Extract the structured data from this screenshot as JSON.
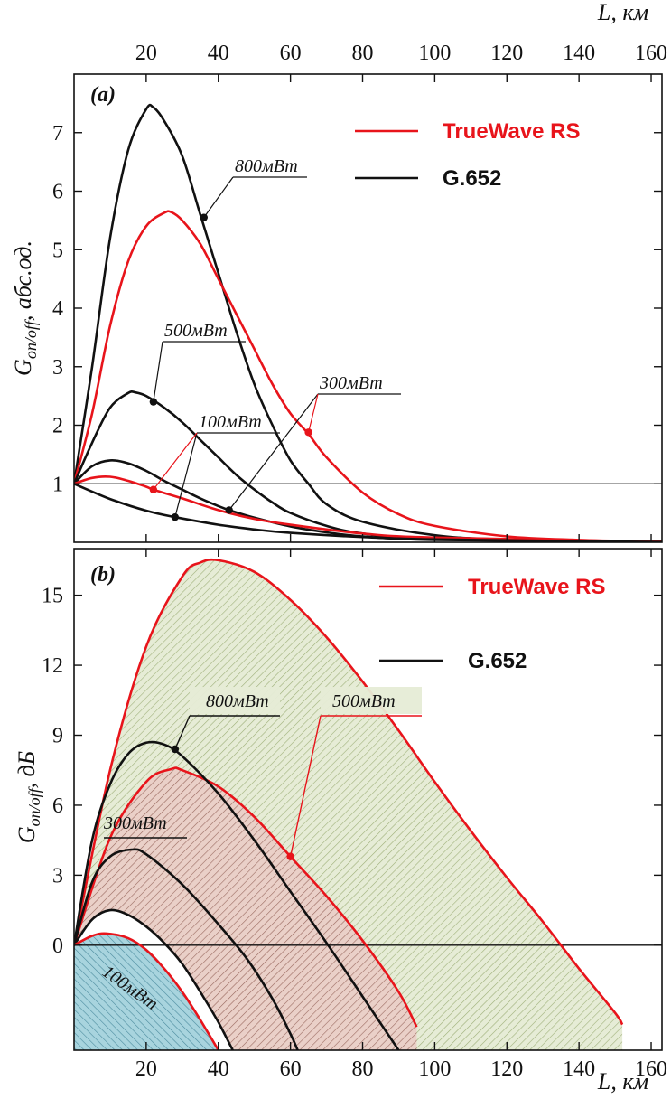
{
  "colors": {
    "truewave": "#e8141b",
    "g652": "#111111",
    "axis": "#111111",
    "fill_green": "#e6ecd6",
    "fill_green_hatch": "#9fb07a",
    "fill_red": "#ead0c8",
    "fill_red_hatch": "#9a6a60",
    "fill_blue": "#a8d4de",
    "fill_blue_hatch": "#4e8da0"
  },
  "top_axis": {
    "label": "L, км",
    "ticks": [
      "20",
      "40",
      "60",
      "80",
      "100",
      "120",
      "140",
      "160"
    ]
  },
  "chart_data": [
    {
      "type": "line",
      "panel": "(a)",
      "ylabel_main": "G",
      "ylabel_sub": "on/off",
      "ylabel_unit": ", абс.од.",
      "xlim": [
        0,
        163
      ],
      "ylim": [
        0,
        8
      ],
      "yticks": [
        "1",
        "2",
        "3",
        "4",
        "5",
        "6",
        "7"
      ],
      "reference_line_y": 1,
      "legend": {
        "position": "top-right",
        "items": [
          {
            "label": "TrueWave RS",
            "color_key": "truewave"
          },
          {
            "label": "G.652",
            "color_key": "g652"
          }
        ]
      },
      "series": [
        {
          "fiber": "G.652",
          "color_key": "g652",
          "power": "800мВт",
          "points": [
            [
              0,
              1.0
            ],
            [
              5,
              3.0
            ],
            [
              10,
              5.2
            ],
            [
              15,
              6.7
            ],
            [
              20,
              7.4
            ],
            [
              22,
              7.43
            ],
            [
              25,
              7.2
            ],
            [
              30,
              6.6
            ],
            [
              35,
              5.6
            ],
            [
              40,
              4.6
            ],
            [
              45,
              3.6
            ],
            [
              50,
              2.7
            ],
            [
              55,
              2.0
            ],
            [
              60,
              1.4
            ],
            [
              65,
              1.0
            ],
            [
              70,
              0.65
            ],
            [
              80,
              0.35
            ],
            [
              100,
              0.12
            ],
            [
              120,
              0.05
            ],
            [
              163,
              0.01
            ]
          ]
        },
        {
          "fiber": "TrueWave RS",
          "color_key": "truewave",
          "power": "800мВт",
          "points": [
            [
              0,
              1.0
            ],
            [
              5,
              2.2
            ],
            [
              10,
              3.7
            ],
            [
              15,
              4.8
            ],
            [
              20,
              5.4
            ],
            [
              25,
              5.63
            ],
            [
              27,
              5.64
            ],
            [
              30,
              5.5
            ],
            [
              35,
              5.1
            ],
            [
              40,
              4.5
            ],
            [
              45,
              3.9
            ],
            [
              50,
              3.3
            ],
            [
              55,
              2.7
            ],
            [
              60,
              2.2
            ],
            [
              65,
              1.85
            ],
            [
              70,
              1.45
            ],
            [
              80,
              0.85
            ],
            [
              90,
              0.48
            ],
            [
              100,
              0.28
            ],
            [
              120,
              0.1
            ],
            [
              140,
              0.04
            ],
            [
              163,
              0.01
            ]
          ]
        },
        {
          "fiber": "G.652",
          "color_key": "g652",
          "power": "500мВт",
          "points": [
            [
              0,
              1.0
            ],
            [
              5,
              1.7
            ],
            [
              10,
              2.3
            ],
            [
              15,
              2.55
            ],
            [
              17,
              2.56
            ],
            [
              20,
              2.5
            ],
            [
              25,
              2.3
            ],
            [
              30,
              2.05
            ],
            [
              35,
              1.75
            ],
            [
              40,
              1.45
            ],
            [
              45,
              1.15
            ],
            [
              50,
              0.9
            ],
            [
              55,
              0.68
            ],
            [
              60,
              0.5
            ],
            [
              70,
              0.28
            ],
            [
              80,
              0.15
            ],
            [
              100,
              0.05
            ],
            [
              163,
              0.005
            ]
          ]
        },
        {
          "fiber": "G.652",
          "color_key": "g652",
          "power": "300мВт",
          "points": [
            [
              0,
              1.0
            ],
            [
              5,
              1.3
            ],
            [
              10,
              1.4
            ],
            [
              15,
              1.35
            ],
            [
              20,
              1.22
            ],
            [
              25,
              1.05
            ],
            [
              30,
              0.9
            ],
            [
              35,
              0.75
            ],
            [
              40,
              0.62
            ],
            [
              43,
              0.55
            ],
            [
              50,
              0.42
            ],
            [
              60,
              0.27
            ],
            [
              70,
              0.17
            ],
            [
              80,
              0.1
            ],
            [
              100,
              0.04
            ],
            [
              163,
              0.004
            ]
          ]
        },
        {
          "fiber": "TrueWave RS",
          "color_key": "truewave",
          "power": "100мВт",
          "points": [
            [
              0,
              1.0
            ],
            [
              5,
              1.1
            ],
            [
              10,
              1.12
            ],
            [
              15,
              1.05
            ],
            [
              20,
              0.95
            ],
            [
              22,
              0.9
            ],
            [
              30,
              0.75
            ],
            [
              40,
              0.55
            ],
            [
              50,
              0.4
            ],
            [
              60,
              0.3
            ],
            [
              80,
              0.15
            ],
            [
              100,
              0.08
            ],
            [
              163,
              0.01
            ]
          ]
        },
        {
          "fiber": "G.652",
          "color_key": "g652",
          "power": "100мВт",
          "points": [
            [
              0,
              1.0
            ],
            [
              10,
              0.74
            ],
            [
              20,
              0.54
            ],
            [
              28,
              0.43
            ],
            [
              40,
              0.3
            ],
            [
              50,
              0.22
            ],
            [
              60,
              0.16
            ],
            [
              80,
              0.09
            ],
            [
              100,
              0.05
            ],
            [
              163,
              0.004
            ]
          ]
        }
      ],
      "annotations": [
        {
          "text": "800мВт",
          "marker": [
            36,
            5.55
          ],
          "color_key": "g652"
        },
        {
          "text": "500мВт",
          "marker": [
            22,
            2.4
          ],
          "color_key": "g652"
        },
        {
          "text": "300мВт",
          "marker": [
            43,
            0.55
          ],
          "color_key": "g652"
        },
        {
          "text": "100мВт",
          "marker": [
            28,
            0.43
          ],
          "color_key": "g652"
        },
        {
          "text": "",
          "marker": [
            22,
            0.9
          ],
          "color_key": "truewave"
        },
        {
          "text": "",
          "marker": [
            65,
            1.88
          ],
          "color_key": "truewave"
        }
      ]
    },
    {
      "type": "area",
      "panel": "(b)",
      "ylabel_main": "G",
      "ylabel_sub": "on/off",
      "ylabel_unit": ", дБ",
      "xlabel": "L, км",
      "xlim": [
        0,
        163
      ],
      "ylim": [
        -4.5,
        17
      ],
      "xticks": [
        "20",
        "40",
        "60",
        "80",
        "100",
        "120",
        "140",
        "160"
      ],
      "yticks": [
        "0",
        "3",
        "6",
        "9",
        "12",
        "15"
      ],
      "reference_line_y": 0,
      "legend": {
        "position": "top-right",
        "items": [
          {
            "label": "TrueWave RS",
            "color_key": "truewave"
          },
          {
            "label": "G.652",
            "color_key": "g652"
          }
        ]
      },
      "series": [
        {
          "fiber": "TrueWave RS",
          "color_key": "truewave",
          "power": "800мВт",
          "fill": "green",
          "points": [
            [
              0,
              0
            ],
            [
              10,
              7.5
            ],
            [
              20,
              12.8
            ],
            [
              30,
              15.8
            ],
            [
              35,
              16.4
            ],
            [
              40,
              16.5
            ],
            [
              50,
              16.0
            ],
            [
              60,
              14.8
            ],
            [
              70,
              13.2
            ],
            [
              80,
              11.3
            ],
            [
              90,
              9.2
            ],
            [
              100,
              7.0
            ],
            [
              110,
              4.9
            ],
            [
              120,
              2.9
            ],
            [
              130,
              1.0
            ],
            [
              140,
              -1.0
            ],
            [
              150,
              -2.9
            ],
            [
              152,
              -3.4
            ]
          ]
        },
        {
          "fiber": "TrueWave RS",
          "color_key": "truewave",
          "power": "500мВт",
          "fill": "red",
          "points": [
            [
              0,
              0
            ],
            [
              10,
              4.6
            ],
            [
              20,
              7.0
            ],
            [
              27,
              7.55
            ],
            [
              30,
              7.5
            ],
            [
              40,
              6.8
            ],
            [
              50,
              5.5
            ],
            [
              60,
              3.8
            ],
            [
              70,
              2.1
            ],
            [
              80,
              0.2
            ],
            [
              90,
              -2.0
            ],
            [
              95,
              -3.5
            ]
          ]
        },
        {
          "fiber": "G.652",
          "color_key": "g652",
          "power": "800мВт",
          "points": [
            [
              0,
              0
            ],
            [
              5,
              4.5
            ],
            [
              10,
              6.9
            ],
            [
              15,
              8.2
            ],
            [
              20,
              8.68
            ],
            [
              25,
              8.6
            ],
            [
              30,
              8.1
            ],
            [
              40,
              6.5
            ],
            [
              50,
              4.5
            ],
            [
              60,
              2.3
            ],
            [
              70,
              0.1
            ],
            [
              80,
              -2.2
            ],
            [
              90,
              -4.5
            ]
          ]
        },
        {
          "fiber": "G.652",
          "color_key": "g652",
          "power": "500мВт",
          "points": [
            [
              0,
              0
            ],
            [
              5,
              2.7
            ],
            [
              10,
              3.8
            ],
            [
              16,
              4.1
            ],
            [
              20,
              3.9
            ],
            [
              30,
              2.6
            ],
            [
              40,
              0.9
            ],
            [
              48,
              -0.6
            ],
            [
              55,
              -2.3
            ],
            [
              60,
              -3.8
            ],
            [
              62,
              -4.5
            ]
          ]
        },
        {
          "fiber": "G.652",
          "color_key": "g652",
          "power": "300мВт",
          "points": [
            [
              0,
              0
            ],
            [
              5,
              1.1
            ],
            [
              10,
              1.5
            ],
            [
              15,
              1.3
            ],
            [
              20,
              0.8
            ],
            [
              25,
              0.1
            ],
            [
              30,
              -0.8
            ],
            [
              35,
              -2.0
            ],
            [
              40,
              -3.3
            ],
            [
              44,
              -4.5
            ]
          ]
        },
        {
          "fiber": "TrueWave RS",
          "color_key": "truewave",
          "power": "100мВт",
          "fill": "blue",
          "points": [
            [
              0,
              0
            ],
            [
              5,
              0.4
            ],
            [
              9,
              0.5
            ],
            [
              15,
              0.3
            ],
            [
              20,
              -0.2
            ],
            [
              25,
              -1.0
            ],
            [
              30,
              -2.0
            ],
            [
              35,
              -3.2
            ],
            [
              40,
              -4.5
            ]
          ]
        }
      ],
      "annotations": [
        {
          "text": "800мВт",
          "marker": [
            28,
            8.4
          ],
          "color_key": "g652"
        },
        {
          "text": "500мВт",
          "marker": [
            60,
            3.8
          ],
          "color_key": "truewave"
        },
        {
          "text": "300мВт",
          "marker": null,
          "color_key": "g652"
        },
        {
          "text": "100мВт",
          "marker": null,
          "color_key": "g652",
          "rotated": true
        }
      ]
    }
  ]
}
